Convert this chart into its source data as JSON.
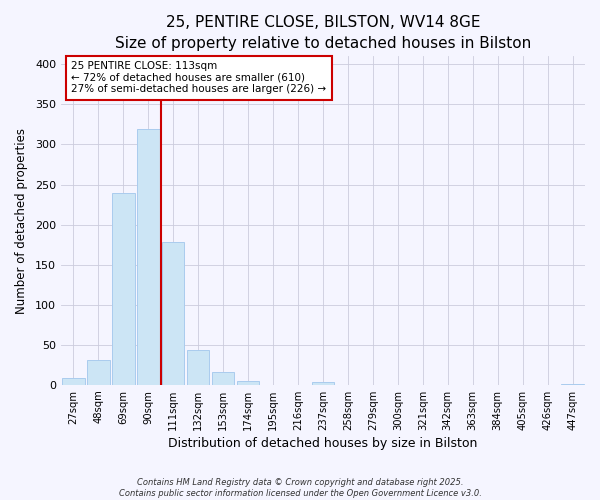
{
  "title": "25, PENTIRE CLOSE, BILSTON, WV14 8GE",
  "subtitle": "Size of property relative to detached houses in Bilston",
  "xlabel": "Distribution of detached houses by size in Bilston",
  "ylabel": "Number of detached properties",
  "bar_labels": [
    "27sqm",
    "48sqm",
    "69sqm",
    "90sqm",
    "111sqm",
    "132sqm",
    "153sqm",
    "174sqm",
    "195sqm",
    "216sqm",
    "237sqm",
    "258sqm",
    "279sqm",
    "300sqm",
    "321sqm",
    "342sqm",
    "363sqm",
    "384sqm",
    "405sqm",
    "426sqm",
    "447sqm"
  ],
  "bar_values": [
    8,
    31,
    239,
    319,
    178,
    44,
    16,
    5,
    0,
    0,
    3,
    0,
    0,
    0,
    0,
    0,
    0,
    0,
    0,
    0,
    1
  ],
  "bar_color": "#cce5f5",
  "bar_edgecolor": "#aaccee",
  "vline_color": "#cc0000",
  "annotation_line1": "25 PENTIRE CLOSE: 113sqm",
  "annotation_line2": "← 72% of detached houses are smaller (610)",
  "annotation_line3": "27% of semi-detached houses are larger (226) →",
  "annotation_boxcolor": "white",
  "annotation_edgecolor": "#cc0000",
  "ylim": [
    0,
    410
  ],
  "yticks": [
    0,
    50,
    100,
    150,
    200,
    250,
    300,
    350,
    400
  ],
  "footer1": "Contains HM Land Registry data © Crown copyright and database right 2025.",
  "footer2": "Contains public sector information licensed under the Open Government Licence v3.0.",
  "bg_color": "#f5f5ff",
  "grid_color": "#ccccdd",
  "title_fontsize": 11,
  "subtitle_fontsize": 9.5
}
